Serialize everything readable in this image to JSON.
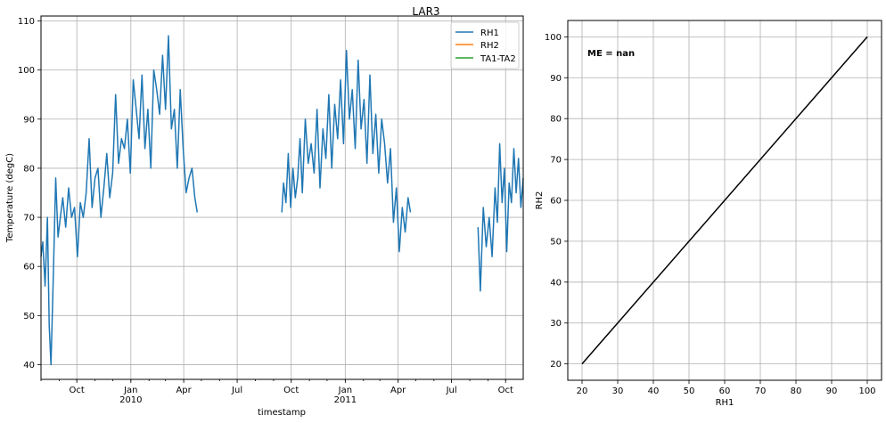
{
  "figure_title": "LAR3",
  "chart_data": [
    {
      "type": "line",
      "title": "",
      "xlabel": "timestamp",
      "ylabel": "Temperature (degC)",
      "xlim": [
        "2009-08-01",
        "2011-10-31"
      ],
      "ylim": [
        37,
        111
      ],
      "yticks": [
        40,
        50,
        60,
        70,
        80,
        90,
        100,
        110
      ],
      "grid": true,
      "legend_position": "top-right",
      "x_tick_labels": [
        {
          "date": "2009-10-01",
          "label": "Oct",
          "sub": ""
        },
        {
          "date": "2010-01-01",
          "label": "Jan",
          "sub": "2010"
        },
        {
          "date": "2010-04-01",
          "label": "Apr",
          "sub": ""
        },
        {
          "date": "2010-07-01",
          "label": "Jul",
          "sub": ""
        },
        {
          "date": "2010-10-01",
          "label": "Oct",
          "sub": ""
        },
        {
          "date": "2011-01-01",
          "label": "Jan",
          "sub": "2011"
        },
        {
          "date": "2011-04-01",
          "label": "Apr",
          "sub": ""
        },
        {
          "date": "2011-07-01",
          "label": "Jul",
          "sub": ""
        },
        {
          "date": "2011-10-01",
          "label": "Oct",
          "sub": ""
        }
      ],
      "series": [
        {
          "name": "RH1",
          "color": "#1f77b4",
          "segments": [
            {
              "x": [
                "2009-08-01",
                "2009-08-04",
                "2009-08-08",
                "2009-08-12",
                "2009-08-15",
                "2009-08-18",
                "2009-08-22",
                "2009-08-26",
                "2009-08-30",
                "2009-09-03",
                "2009-09-07",
                "2009-09-12",
                "2009-09-17",
                "2009-09-22",
                "2009-09-27",
                "2009-10-02",
                "2009-10-07",
                "2009-10-12",
                "2009-10-17",
                "2009-10-22",
                "2009-10-27",
                "2009-11-01",
                "2009-11-06",
                "2009-11-11",
                "2009-11-16",
                "2009-11-21",
                "2009-11-26",
                "2009-12-01",
                "2009-12-06",
                "2009-12-11",
                "2009-12-16",
                "2009-12-21",
                "2009-12-26",
                "2009-12-31",
                "2010-01-05",
                "2010-01-10",
                "2010-01-15",
                "2010-01-20",
                "2010-01-25",
                "2010-01-30",
                "2010-02-04",
                "2010-02-09",
                "2010-02-14",
                "2010-02-19",
                "2010-02-24",
                "2010-03-01",
                "2010-03-06",
                "2010-03-11",
                "2010-03-16",
                "2010-03-21",
                "2010-03-26",
                "2010-03-31",
                "2010-04-05",
                "2010-04-10",
                "2010-04-15",
                "2010-04-20",
                "2010-04-24"
              ],
              "y": [
                62,
                65,
                56,
                70,
                48,
                40,
                58,
                78,
                66,
                70,
                74,
                68,
                76,
                70,
                72,
                62,
                73,
                70,
                75,
                86,
                72,
                78,
                80,
                70,
                76,
                83,
                74,
                79,
                95,
                81,
                86,
                84,
                90,
                79,
                98,
                92,
                86,
                99,
                84,
                92,
                80,
                100,
                96,
                91,
                103,
                92,
                107,
                88,
                92,
                80,
                96,
                84,
                75,
                78,
                80,
                74,
                71
              ]
            },
            {
              "x": [
                "2010-09-15",
                "2010-09-18",
                "2010-09-22",
                "2010-09-26",
                "2010-09-30",
                "2010-10-04",
                "2010-10-08",
                "2010-10-12",
                "2010-10-16",
                "2010-10-20",
                "2010-10-25",
                "2010-10-30",
                "2010-11-04",
                "2010-11-09",
                "2010-11-14",
                "2010-11-19",
                "2010-11-24",
                "2010-11-29",
                "2010-12-04",
                "2010-12-09",
                "2010-12-14",
                "2010-12-19",
                "2010-12-24",
                "2010-12-29",
                "2011-01-03",
                "2011-01-08",
                "2011-01-13",
                "2011-01-18",
                "2011-01-23",
                "2011-01-28",
                "2011-02-02",
                "2011-02-07",
                "2011-02-12",
                "2011-02-17",
                "2011-02-22",
                "2011-02-27",
                "2011-03-04",
                "2011-03-09",
                "2011-03-14",
                "2011-03-19",
                "2011-03-24",
                "2011-03-29",
                "2011-04-03",
                "2011-04-08",
                "2011-04-13",
                "2011-04-18",
                "2011-04-22"
              ],
              "y": [
                71,
                77,
                73,
                83,
                72,
                80,
                74,
                78,
                86,
                75,
                90,
                81,
                85,
                79,
                92,
                76,
                88,
                82,
                95,
                80,
                93,
                86,
                98,
                85,
                104,
                90,
                96,
                84,
                102,
                88,
                94,
                81,
                99,
                83,
                91,
                79,
                90,
                85,
                77,
                84,
                69,
                76,
                63,
                72,
                67,
                74,
                71
              ]
            },
            {
              "x": [
                "2011-08-15",
                "2011-08-19",
                "2011-08-24",
                "2011-08-29",
                "2011-09-03",
                "2011-09-08",
                "2011-09-13",
                "2011-09-17",
                "2011-09-21",
                "2011-09-25",
                "2011-09-29",
                "2011-10-03",
                "2011-10-07",
                "2011-10-11",
                "2011-10-15",
                "2011-10-19",
                "2011-10-23",
                "2011-10-27",
                "2011-10-31"
              ],
              "y": [
                68,
                55,
                72,
                64,
                70,
                62,
                76,
                69,
                85,
                73,
                80,
                63,
                77,
                73,
                84,
                75,
                82,
                72,
                78
              ]
            }
          ]
        },
        {
          "name": "RH2",
          "color": "#ff7f0e",
          "segments": []
        },
        {
          "name": "TA1-TA2",
          "color": "#2ca02c",
          "segments": []
        }
      ]
    },
    {
      "type": "line",
      "title": "",
      "xlabel": "RH1",
      "ylabel": "RH2",
      "xlim": [
        16,
        104
      ],
      "ylim": [
        16,
        104
      ],
      "xticks": [
        20,
        30,
        40,
        50,
        60,
        70,
        80,
        90,
        100
      ],
      "yticks": [
        20,
        30,
        40,
        50,
        60,
        70,
        80,
        90,
        100
      ],
      "grid": true,
      "annotation": "ME = nan",
      "series": [
        {
          "color": "#000000",
          "x": [
            20,
            100
          ],
          "y": [
            20,
            100
          ]
        }
      ]
    }
  ]
}
